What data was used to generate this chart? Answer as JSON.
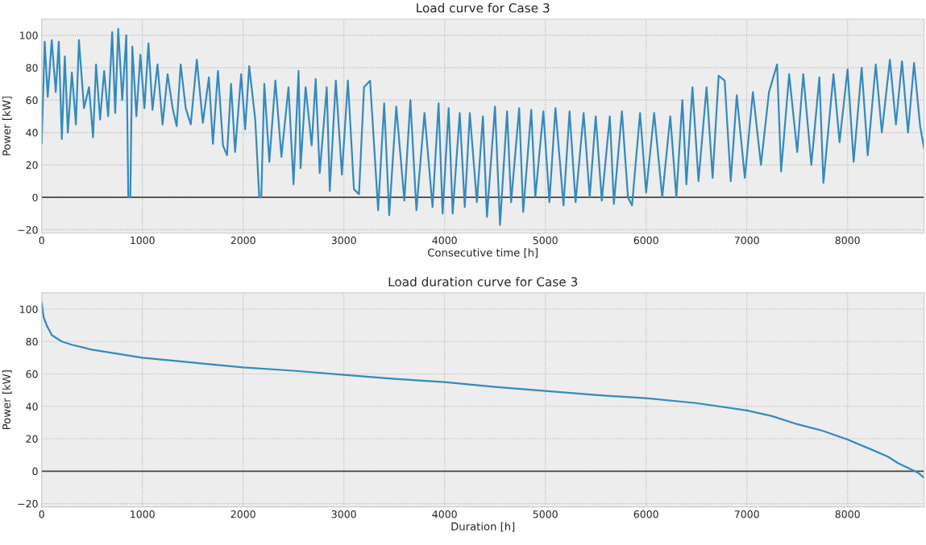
{
  "chart_data": [
    {
      "type": "line",
      "title": "Load curve for Case 3",
      "xlabel": "Consecutive time [h]",
      "ylabel": "Power [kW]",
      "series": [
        {
          "color": "#348abd",
          "x": [
            0,
            30,
            60,
            100,
            140,
            170,
            200,
            230,
            260,
            300,
            340,
            370,
            420,
            470,
            510,
            540,
            580,
            620,
            660,
            700,
            730,
            760,
            800,
            840,
            860,
            880,
            900,
            940,
            980,
            1020,
            1060,
            1100,
            1150,
            1200,
            1250,
            1300,
            1340,
            1380,
            1430,
            1480,
            1540,
            1600,
            1660,
            1700,
            1750,
            1800,
            1840,
            1880,
            1920,
            1980,
            2020,
            2060,
            2120,
            2160,
            2180,
            2210,
            2260,
            2320,
            2380,
            2450,
            2500,
            2550,
            2570,
            2620,
            2680,
            2720,
            2760,
            2830,
            2860,
            2920,
            2980,
            3040,
            3100,
            3150,
            3200,
            3260,
            3340,
            3400,
            3450,
            3520,
            3600,
            3660,
            3720,
            3800,
            3880,
            3940,
            3980,
            4040,
            4080,
            4150,
            4200,
            4250,
            4320,
            4380,
            4420,
            4500,
            4550,
            4620,
            4660,
            4740,
            4780,
            4860,
            4900,
            4980,
            5040,
            5100,
            5180,
            5240,
            5300,
            5380,
            5440,
            5500,
            5560,
            5640,
            5680,
            5760,
            5820,
            5860,
            5940,
            6000,
            6080,
            6160,
            6240,
            6300,
            6360,
            6400,
            6460,
            6520,
            6600,
            6660,
            6720,
            6780,
            6840,
            6900,
            6980,
            7060,
            7140,
            7220,
            7300,
            7340,
            7420,
            7500,
            7560,
            7640,
            7720,
            7760,
            7860,
            7920,
            8000,
            8060,
            8140,
            8200,
            8280,
            8340,
            8420,
            8480,
            8540,
            8600,
            8660,
            8720,
            8760
          ],
          "values": [
            33,
            96,
            62,
            97,
            65,
            96,
            36,
            87,
            40,
            77,
            45,
            97,
            55,
            68,
            37,
            82,
            48,
            78,
            50,
            102,
            52,
            104,
            60,
            100,
            0,
            0,
            93,
            50,
            88,
            55,
            95,
            54,
            82,
            45,
            76,
            55,
            44,
            82,
            55,
            45,
            85,
            46,
            74,
            33,
            78,
            32,
            26,
            70,
            28,
            76,
            42,
            81,
            48,
            0,
            0,
            70,
            22,
            72,
            25,
            68,
            8,
            78,
            18,
            68,
            32,
            73,
            15,
            68,
            4,
            72,
            14,
            72,
            5,
            2,
            68,
            72,
            -8,
            58,
            -11,
            56,
            -2,
            60,
            -8,
            52,
            -6,
            58,
            -10,
            55,
            -10,
            52,
            -6,
            52,
            -3,
            50,
            -12,
            56,
            -17,
            53,
            -3,
            55,
            -9,
            54,
            0,
            53,
            -3,
            55,
            -5,
            53,
            -3,
            52,
            0,
            50,
            -2,
            50,
            -4,
            53,
            0,
            -5,
            52,
            3,
            52,
            0,
            50,
            0,
            60,
            8,
            68,
            10,
            68,
            12,
            75,
            72,
            10,
            63,
            12,
            65,
            20,
            65,
            82,
            16,
            76,
            28,
            76,
            20,
            74,
            9,
            76,
            34,
            79,
            22,
            80,
            26,
            82,
            40,
            85,
            45,
            84,
            40,
            83,
            44,
            30
          ]
        }
      ],
      "xlim": [
        0,
        8760
      ],
      "xticks": [
        0,
        1000,
        2000,
        3000,
        4000,
        5000,
        6000,
        7000,
        8000
      ],
      "ylim": [
        -22,
        110
      ],
      "yticks": [
        -20,
        0,
        20,
        40,
        60,
        80,
        100
      ],
      "ref_lines": [
        {
          "axis": "y",
          "value": 0,
          "color": "#444444"
        }
      ],
      "grid": true
    },
    {
      "type": "line",
      "title": "Load duration curve for Case 3",
      "xlabel": "Duration [h]",
      "ylabel": "Power [kW]",
      "series": [
        {
          "color": "#348abd",
          "x": [
            0,
            20,
            50,
            100,
            200,
            300,
            500,
            800,
            1000,
            1500,
            2000,
            2500,
            3000,
            3500,
            4000,
            4500,
            5000,
            5500,
            6000,
            6500,
            7000,
            7250,
            7500,
            7750,
            8000,
            8250,
            8400,
            8500,
            8600,
            8700,
            8760
          ],
          "values": [
            104,
            95,
            90,
            84,
            80,
            78,
            75,
            72,
            70,
            67,
            64,
            62,
            59.5,
            57,
            55,
            52,
            49.5,
            47,
            45,
            42,
            37.5,
            34,
            29,
            25,
            19.5,
            13,
            9,
            5,
            2,
            -1,
            -4
          ]
        }
      ],
      "xlim": [
        0,
        8760
      ],
      "xticks": [
        0,
        1000,
        2000,
        3000,
        4000,
        5000,
        6000,
        7000,
        8000
      ],
      "ylim": [
        -22,
        110
      ],
      "yticks": [
        -20,
        0,
        20,
        40,
        60,
        80,
        100
      ],
      "ref_lines": [
        {
          "axis": "y",
          "value": 0,
          "color": "#444444"
        }
      ],
      "grid": true
    }
  ]
}
